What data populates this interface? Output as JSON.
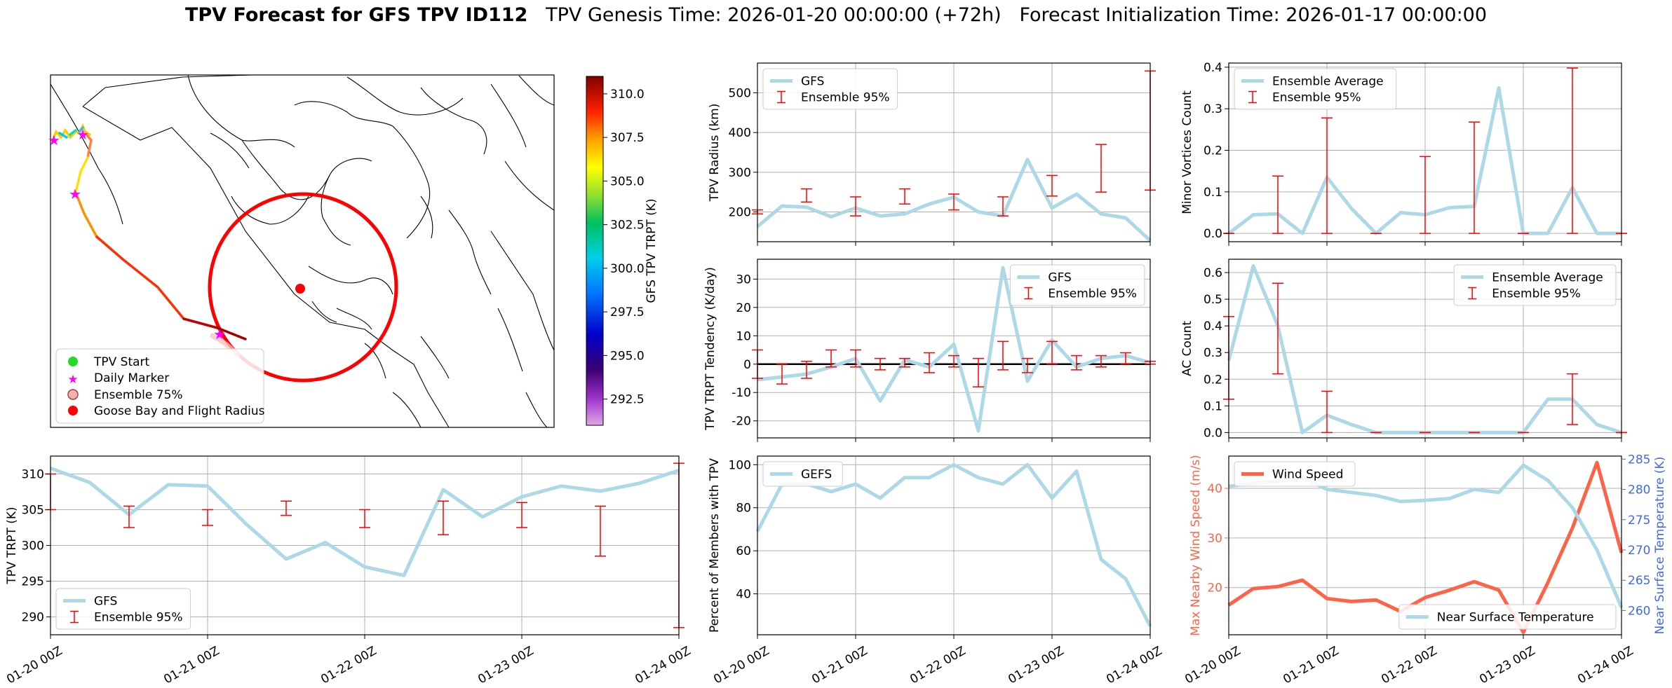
{
  "figure": {
    "title_bold": "TPV Forecast for GFS TPV ID112",
    "title_rest": "TPV Genesis Time: 2026-01-20 00:00:00 (+72h)   Forecast Initialization Time: 2026-01-17 00:00:00"
  },
  "colors": {
    "gfs_line": "#add8e6",
    "errorbar": "#ff0000",
    "wind": "#ff6347",
    "temp_axis": "#4169e1",
    "grid": "#b0b0b0",
    "track_red": "#ff0000"
  },
  "map": {
    "colorbar_label": "GFS TPV TRPT (K)",
    "colorbar_ticks": [
      "292.5",
      "295.0",
      "297.5",
      "300.0",
      "302.5",
      "305.0",
      "307.5",
      "310.0"
    ],
    "colorbar_range": [
      291.0,
      311.0
    ],
    "legend": [
      "TPV Start",
      "Daily Marker",
      "Ensemble 75%",
      "Goose Bay and Flight Radius"
    ]
  },
  "x_ticks": [
    "01-20 00Z",
    "01-21 00Z",
    "01-22 00Z",
    "01-23 00Z",
    "01-24 00Z"
  ],
  "chart_data": [
    {
      "id": "radius",
      "type": "line",
      "title": "",
      "xlabel": "",
      "ylabel": "TPV Radius (km)",
      "ylim": [
        125,
        575
      ],
      "yticks": [
        200,
        300,
        400,
        500
      ],
      "grid": true,
      "legend_loc": "upper left",
      "x": [
        0,
        0.25,
        0.5,
        0.75,
        1,
        1.25,
        1.5,
        1.75,
        2,
        2.25,
        2.5,
        2.75,
        3,
        3.25,
        3.5,
        3.75,
        4
      ],
      "series": [
        {
          "name": "GFS",
          "values": [
            163,
            215,
            212,
            188,
            210,
            190,
            195,
            220,
            237,
            200,
            190,
            332,
            210,
            245,
            195,
            185,
            128
          ]
        }
      ],
      "errorbars": {
        "name": "Ensemble 95%",
        "x": [
          0,
          0.5,
          1,
          1.5,
          2,
          2.5,
          3,
          3.5,
          4
        ],
        "low": [
          195,
          225,
          190,
          220,
          205,
          190,
          240,
          250,
          255
        ],
        "high": [
          205,
          258,
          238,
          258,
          245,
          238,
          292,
          370,
          555
        ]
      }
    },
    {
      "id": "minor",
      "type": "line",
      "title": "",
      "xlabel": "",
      "ylabel": "Minor Vortices Count",
      "ylim": [
        -0.02,
        0.41
      ],
      "yticks": [
        0.0,
        0.1,
        0.2,
        0.3,
        0.4
      ],
      "grid": true,
      "legend_loc": "upper left",
      "x": [
        0,
        0.25,
        0.5,
        0.75,
        1,
        1.25,
        1.5,
        1.75,
        2,
        2.25,
        2.5,
        2.75,
        3,
        3.25,
        3.5,
        3.75,
        4
      ],
      "series": [
        {
          "name": "Ensemble Average",
          "values": [
            0,
            0.045,
            0.047,
            0,
            0.135,
            0.06,
            0,
            0.05,
            0.045,
            0.062,
            0.065,
            0.35,
            0,
            0,
            0.11,
            0,
            0
          ]
        }
      ],
      "errorbars": {
        "name": "Ensemble 95%",
        "x": [
          0,
          0.5,
          1,
          1.5,
          2,
          2.5,
          3,
          3.5,
          4
        ],
        "low": [
          0,
          0,
          0,
          0,
          0,
          0,
          0,
          0,
          0
        ],
        "high": [
          0,
          0.138,
          0.278,
          0,
          0.185,
          0.268,
          0,
          0.398,
          0
        ]
      }
    },
    {
      "id": "tendency",
      "type": "line",
      "title": "",
      "xlabel": "",
      "ylabel": "TPV TRPT Tendency (K/day)",
      "ylim": [
        -26,
        37
      ],
      "yticks": [
        -20,
        -10,
        0,
        10,
        20,
        30
      ],
      "grid": true,
      "legend_loc": "upper right",
      "hline": 0,
      "x": [
        0,
        0.25,
        0.5,
        0.75,
        1,
        1.25,
        1.5,
        1.75,
        2,
        2.25,
        2.5,
        2.75,
        3,
        3.25,
        3.5,
        3.75,
        4
      ],
      "series": [
        {
          "name": "GFS",
          "values": [
            -5.5,
            -4.5,
            -3.5,
            -1,
            2,
            -13,
            1.5,
            -1,
            7,
            -23.5,
            34,
            -6,
            8.5,
            -1,
            2,
            3,
            0.5
          ]
        }
      ],
      "errorbars": {
        "name": "Ensemble 95%",
        "x": [
          0,
          0.25,
          0.5,
          0.75,
          1,
          1.25,
          1.5,
          1.75,
          2,
          2.25,
          2.5,
          2.75,
          3,
          3.25,
          3.5,
          3.75,
          4
        ],
        "low": [
          -5,
          -7,
          -5,
          -1,
          -1,
          -2,
          -1,
          -3,
          -1,
          -8,
          -2,
          -3,
          0,
          -2,
          -1,
          0,
          0
        ],
        "high": [
          5,
          0,
          1,
          5,
          5,
          2,
          2,
          4,
          3,
          2,
          8,
          2,
          8,
          3,
          3,
          4,
          1
        ]
      }
    },
    {
      "id": "ac",
      "type": "line",
      "title": "",
      "xlabel": "",
      "ylabel": "AC Count",
      "ylim": [
        -0.02,
        0.65
      ],
      "yticks": [
        0.0,
        0.1,
        0.2,
        0.3,
        0.4,
        0.5,
        0.6
      ],
      "grid": true,
      "legend_loc": "upper right",
      "x": [
        0,
        0.25,
        0.5,
        0.75,
        1,
        1.25,
        1.5,
        1.75,
        2,
        2.25,
        2.5,
        2.75,
        3,
        3.25,
        3.5,
        3.75,
        4
      ],
      "series": [
        {
          "name": "Ensemble Average",
          "values": [
            0.27,
            0.625,
            0.4,
            0,
            0.065,
            0.03,
            0,
            0,
            0,
            0,
            0,
            0,
            0,
            0.125,
            0.125,
            0.03,
            0
          ]
        }
      ],
      "errorbars": {
        "name": "Ensemble 95%",
        "x": [
          0,
          0.5,
          1,
          1.5,
          2,
          2.5,
          3,
          3.5,
          4
        ],
        "low": [
          0.125,
          0.22,
          0,
          0,
          0,
          0,
          0,
          0.03,
          0
        ],
        "high": [
          0.435,
          0.56,
          0.155,
          0,
          0,
          0,
          0,
          0.22,
          0
        ]
      }
    },
    {
      "id": "trpt",
      "type": "line",
      "title": "",
      "xlabel": "",
      "ylabel": "TPV TRPT (K)",
      "ylim": [
        287.5,
        312.5
      ],
      "yticks": [
        290,
        295,
        300,
        305,
        310
      ],
      "grid": true,
      "legend_loc": "lower left",
      "x": [
        0,
        0.25,
        0.5,
        0.75,
        1,
        1.25,
        1.5,
        1.75,
        2,
        2.25,
        2.5,
        2.75,
        3,
        3.25,
        3.5,
        3.75,
        4
      ],
      "series": [
        {
          "name": "GFS",
          "values": [
            310.8,
            308.8,
            304.3,
            308.5,
            308.3,
            302.9,
            298.1,
            300.4,
            297.0,
            295.8,
            307.8,
            304.0,
            306.8,
            308.3,
            307.6,
            308.7,
            310.5
          ]
        }
      ],
      "errorbars": {
        "name": "Ensemble 95%",
        "x": [
          0,
          0.5,
          1,
          1.5,
          2,
          2.5,
          3,
          3.5,
          4
        ],
        "low": [
          305,
          302.5,
          302.8,
          304.2,
          302.5,
          301.5,
          302.5,
          298.5,
          288.5
        ],
        "high": [
          310,
          305.5,
          305,
          306.2,
          305,
          306.2,
          306,
          305.5,
          311.5
        ]
      }
    },
    {
      "id": "percent",
      "type": "line",
      "title": "",
      "xlabel": "",
      "ylabel": "Percent of Members with TPV",
      "ylim": [
        21,
        104
      ],
      "yticks": [
        40,
        60,
        80,
        100
      ],
      "grid": true,
      "legend_loc": "upper left",
      "x": [
        0,
        0.25,
        0.5,
        0.75,
        1,
        1.25,
        1.5,
        1.75,
        2,
        2.25,
        2.5,
        2.75,
        3,
        3.25,
        3.5,
        3.75,
        4
      ],
      "series": [
        {
          "name": "GEFS",
          "values": [
            69,
            91,
            91,
            87.5,
            91,
            84.5,
            94,
            94,
            100,
            94,
            91,
            100,
            84.5,
            97,
            56,
            47,
            25
          ]
        }
      ]
    },
    {
      "id": "wind",
      "type": "line",
      "title": "",
      "xlabel": "",
      "ylabel": "Max Nearby Wind Speed (m/s)",
      "ylabel_right": "Near Surface Temperature (K)",
      "ylim": [
        10.5,
        46.5
      ],
      "yticks": [
        20,
        30,
        40
      ],
      "ylim_right": [
        256,
        285.5
      ],
      "yticks_right": [
        260,
        265,
        270,
        275,
        280,
        285
      ],
      "grid": true,
      "legend_loc": "upper left",
      "legend_loc_right": "lower right",
      "x": [
        0,
        0.25,
        0.5,
        0.75,
        1,
        1.25,
        1.5,
        1.75,
        2,
        2.25,
        2.5,
        2.75,
        3,
        3.25,
        3.5,
        3.75,
        4
      ],
      "series": [
        {
          "name": "Wind Speed",
          "values": [
            16.5,
            19.8,
            20.2,
            21.5,
            17.8,
            17.2,
            17.5,
            15.2,
            18,
            19.5,
            21.2,
            19.5,
            11,
            21,
            32,
            45.2,
            27
          ]
        },
        {
          "name": "Near Surface Temperature",
          "values": [
            280.5,
            281,
            281.3,
            282,
            280,
            279.5,
            279,
            278,
            278.2,
            278.5,
            280,
            279.5,
            284,
            281.5,
            277,
            270,
            260.5
          ]
        }
      ]
    }
  ]
}
